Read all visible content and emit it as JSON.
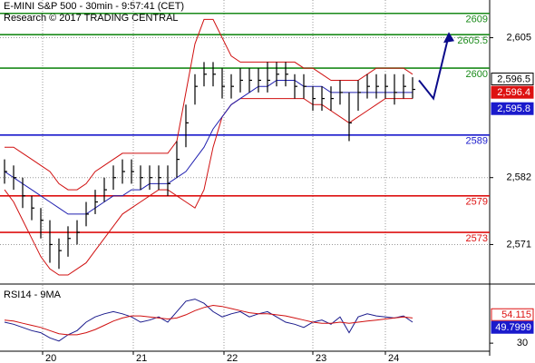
{
  "chart_data": {
    "type": "ohlc",
    "title": "E-MINI S&P 500 - 30min - 9:57:41 (CET)",
    "subtitle": "Research © 2017 TRADING CENTRAL",
    "grid": true,
    "xlim": [
      -0.5,
      53.5
    ],
    "xticks": [
      {
        "value": 4.2,
        "label": "20"
      },
      {
        "value": 14.2,
        "label": "21"
      },
      {
        "value": 24.2,
        "label": "22"
      },
      {
        "value": 34,
        "label": "23"
      },
      {
        "value": 42,
        "label": "24"
      }
    ],
    "ylim": [
      2564.8,
      2611.2
    ],
    "yticks": [
      {
        "value": 2605,
        "label": "2,605"
      },
      {
        "value": 2582,
        "label": "2,582"
      },
      {
        "value": 2571,
        "label": "2,571"
      }
    ],
    "bar_color": "#000000",
    "high": [
      2585,
      2584,
      2582,
      2579,
      2577,
      2575,
      2572,
      2574,
      2575,
      2578,
      2580,
      2582,
      2584,
      2585,
      2585,
      2584,
      2584,
      2584,
      2584,
      2588,
      2594,
      2599,
      2601,
      2601,
      2600,
      2599,
      2600,
      2600,
      2600,
      2601,
      2601,
      2601,
      2599,
      2599,
      2597,
      2597,
      2597,
      2598,
      2596,
      2598,
      2599,
      2599,
      2599,
      2599,
      2599,
      2598.5
    ],
    "low": [
      2581,
      2580,
      2577,
      2575,
      2572,
      2568,
      2567,
      2569,
      2571,
      2574,
      2576,
      2578,
      2580,
      2581,
      2581,
      2580,
      2580,
      2580,
      2579,
      2582,
      2587,
      2594,
      2597,
      2597,
      2595,
      2595,
      2596,
      2596,
      2596,
      2596,
      2597,
      2597,
      2595,
      2595,
      2593,
      2593,
      2593,
      2594,
      2588,
      2593,
      2595,
      2595,
      2595,
      2594,
      2595,
      2595
    ],
    "close": [
      2583,
      2582,
      2579,
      2577,
      2575,
      2571,
      2570,
      2572,
      2573,
      2576,
      2578,
      2580,
      2582,
      2583,
      2583,
      2582,
      2582,
      2582,
      2581,
      2585,
      2591,
      2597,
      2599,
      2599,
      2597,
      2597,
      2598,
      2598,
      2598,
      2598,
      2599,
      2599,
      2597,
      2597,
      2595,
      2595,
      2595,
      2596,
      2591,
      2596,
      2597,
      2597,
      2597,
      2596,
      2597,
      2596.5
    ],
    "series": [
      {
        "color": "#d01010",
        "values": [
          2587,
          2587,
          2586,
          2585,
          2584,
          2583,
          2581,
          2580,
          2580,
          2581,
          2583,
          2584,
          2585,
          2586,
          2586,
          2586,
          2586,
          2586,
          2586,
          2588,
          2596,
          2604,
          2608,
          2608,
          2605,
          2602,
          2601,
          2601,
          2601,
          2601,
          2601,
          2601,
          2601,
          2600,
          2600,
          2599,
          2598,
          2598,
          2598,
          2598,
          2599,
          2600,
          2600,
          2600,
          2600,
          2599
        ]
      },
      {
        "color": "#d01010",
        "values": [
          2580,
          2578,
          2575,
          2572,
          2569,
          2567,
          2566,
          2566,
          2567,
          2568,
          2570,
          2572,
          2574,
          2576,
          2577,
          2578,
          2579,
          2580,
          2580,
          2579,
          2578,
          2577,
          2580,
          2587,
          2592,
          2594,
          2595,
          2595,
          2595,
          2595,
          2595,
          2595,
          2595,
          2595,
          2594,
          2594,
          2593,
          2592,
          2591,
          2592,
          2593,
          2594,
          2595,
          2595,
          2595,
          2595
        ]
      },
      {
        "color": "#2020b0",
        "values": [
          2583,
          2582,
          2581,
          2580,
          2579,
          2578,
          2577,
          2576,
          2576,
          2576,
          2577,
          2578,
          2579,
          2579,
          2580,
          2580,
          2581,
          2581,
          2581,
          2582,
          2583,
          2585,
          2587,
          2590,
          2592,
          2594,
          2595,
          2596,
          2597,
          2597,
          2598,
          2598,
          2598,
          2597,
          2597,
          2597,
          2596,
          2596,
          2596,
          2596,
          2596,
          2596,
          2596,
          2596,
          2596,
          2596
        ]
      }
    ],
    "levels": [
      {
        "value": 2609,
        "color": "#1a8a1a"
      },
      {
        "value": 2605.5,
        "color": "#1a8a1a"
      },
      {
        "value": 2600,
        "color": "#1a8a1a"
      },
      {
        "value": 2589,
        "color": "#1a1acc"
      },
      {
        "value": 2579,
        "color": "#dd1111"
      },
      {
        "value": 2573,
        "color": "#dd1111"
      }
    ],
    "projection": {
      "color": "#0a0a8a",
      "x": [
        45.7,
        47.3,
        49
      ],
      "y": [
        2598,
        2595,
        2605.5
      ]
    },
    "price_tags": [
      {
        "value": 2596.5,
        "label": "2,596.5",
        "color": "#000000"
      },
      {
        "value": 2596.4,
        "label": "2,596.4",
        "color": "#dd1111"
      },
      {
        "value": 2595.8,
        "label": "2,595.8",
        "color": "#1a1acc"
      }
    ],
    "rsi": {
      "label": "RSI14 - 9MA",
      "ylim": [
        18,
        82
      ],
      "yticks": [
        30
      ],
      "series": [
        {
          "color": "#1a1a8c",
          "values": [
            50,
            48,
            45,
            42,
            40,
            35,
            32,
            38,
            42,
            50,
            55,
            58,
            60,
            58,
            55,
            50,
            52,
            55,
            50,
            60,
            70,
            72,
            68,
            60,
            55,
            58,
            60,
            55,
            58,
            60,
            55,
            50,
            48,
            45,
            50,
            52,
            48,
            55,
            40,
            55,
            58,
            56,
            55,
            54,
            56,
            50
          ]
        },
        {
          "color": "#d01010",
          "values": [
            52,
            51,
            49,
            47,
            45,
            42,
            39,
            38,
            38,
            40,
            43,
            47,
            51,
            54,
            56,
            56,
            55,
            54,
            53,
            54,
            57,
            61,
            64,
            66,
            65,
            63,
            61,
            59,
            58,
            58,
            57,
            56,
            54,
            52,
            50,
            49,
            49,
            50,
            49,
            50,
            51,
            52,
            53,
            54,
            55,
            54
          ]
        }
      ],
      "tags": [
        {
          "value": 54.115,
          "color": "#dd1111"
        },
        {
          "value": 49.7999,
          "color": "#1a1acc"
        }
      ]
    }
  }
}
